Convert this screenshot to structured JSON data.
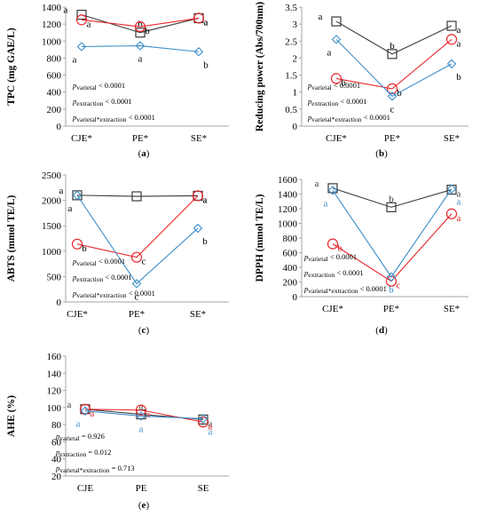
{
  "colors": {
    "black": "#3a3a3a",
    "red": "#e8262b",
    "blue": "#3d8ec9"
  },
  "chart_data": [
    {
      "type": "line",
      "panel": "(a)",
      "ylabel": "TPC (mg GAE/L)",
      "categories": [
        "CJE*",
        "PE*",
        "SE*"
      ],
      "ylim": [
        0,
        1400
      ],
      "yticks": [
        0,
        200,
        400,
        600,
        800,
        1000,
        1200,
        1400
      ],
      "series": [
        {
          "marker": "square",
          "color": "black",
          "values": [
            1310,
            1100,
            1270
          ],
          "letters": [
            "a",
            "b",
            "a"
          ]
        },
        {
          "marker": "circle",
          "color": "red",
          "values": [
            1250,
            1170,
            1270
          ],
          "letters": [
            "a",
            "b",
            "a"
          ]
        },
        {
          "marker": "diamond",
          "color": "blue",
          "values": [
            935,
            945,
            875
          ],
          "letters": [
            "a",
            "a",
            "b"
          ]
        }
      ],
      "stats": [
        "pvarietal < 0.0001",
        "pextraction < 0.0001",
        "pvarietal*extraction < 0.0001"
      ]
    },
    {
      "type": "line",
      "panel": "(b)",
      "ylabel": "Reducing power (Abs/700nm)",
      "categories": [
        "CJE*",
        "PE*",
        "SE*"
      ],
      "ylim": [
        0,
        3.5
      ],
      "yticks": [
        0,
        0.5,
        1,
        1.5,
        2,
        2.5,
        3,
        3.5
      ],
      "series": [
        {
          "marker": "square",
          "color": "black",
          "values": [
            3.08,
            2.12,
            2.95
          ],
          "letters": [
            "a",
            "b",
            "a"
          ]
        },
        {
          "marker": "circle",
          "color": "red",
          "values": [
            1.4,
            1.1,
            2.55
          ],
          "letters": [
            "b",
            "b",
            "a"
          ]
        },
        {
          "marker": "diamond",
          "color": "blue",
          "values": [
            2.55,
            0.88,
            1.83
          ],
          "letters": [
            "a",
            "c",
            "b"
          ]
        }
      ],
      "stats": [
        "pvarietal < 0.0001",
        "pextraction < 0.0001",
        "pvarietal*extraction < 0.0001"
      ]
    },
    {
      "type": "line",
      "panel": "(c)",
      "ylabel": "ABTS (mmol TE/L)",
      "categories": [
        "CJE*",
        "PE*",
        "SE*"
      ],
      "ylim": [
        0,
        2500
      ],
      "yticks": [
        0,
        500,
        1000,
        1500,
        2000,
        2500
      ],
      "series": [
        {
          "marker": "square",
          "color": "black",
          "values": [
            2100,
            2080,
            2090
          ],
          "letters": [
            "a",
            "",
            "a"
          ]
        },
        {
          "marker": "circle",
          "color": "red",
          "values": [
            1140,
            880,
            2090
          ],
          "letters": [
            "b",
            "c",
            "a"
          ]
        },
        {
          "marker": "diamond",
          "color": "blue",
          "values": [
            2100,
            360,
            1450
          ],
          "letters": [
            "a",
            "c",
            "b"
          ]
        }
      ],
      "stats": [
        "pvarietal < 0.0001",
        "pextraction < 0.0001",
        "pvarietal*extraction < 0.0001"
      ]
    },
    {
      "type": "line",
      "panel": "(d)",
      "ylabel": "DPPH (mmol TE/L)",
      "categories": [
        "CJE*",
        "PE*",
        "SE*"
      ],
      "ylim": [
        0,
        1600
      ],
      "yticks": [
        0,
        200,
        400,
        600,
        800,
        1000,
        1200,
        1400,
        1600
      ],
      "series": [
        {
          "marker": "square",
          "color": "black",
          "values": [
            1480,
            1220,
            1460
          ],
          "letters": [
            "a",
            "b",
            "a"
          ]
        },
        {
          "marker": "circle",
          "color": "red",
          "values": [
            720,
            210,
            1130
          ],
          "letters": [
            "b",
            "c",
            "a"
          ]
        },
        {
          "marker": "diamond",
          "color": "blue",
          "values": [
            1450,
            270,
            1470
          ],
          "letters": [
            "a",
            "b",
            "a"
          ]
        }
      ],
      "stats": [
        "pvarietal < 0.0001",
        "pextraction < 0.0001",
        "pvarietal*extraction < 0.0001"
      ]
    },
    {
      "type": "line",
      "panel": "(e)",
      "ylabel": "AHE (%)",
      "categories": [
        "CJE",
        "PE",
        "SE"
      ],
      "ylim": [
        20,
        160
      ],
      "yticks": [
        20,
        40,
        60,
        80,
        100,
        120,
        140,
        160
      ],
      "series": [
        {
          "marker": "square",
          "color": "black",
          "values": [
            98,
            92,
            86
          ],
          "letters": [
            "a",
            "a",
            "a"
          ]
        },
        {
          "marker": "circle",
          "color": "red",
          "values": [
            98,
            97,
            83
          ],
          "letters": [
            "a",
            "a",
            "a"
          ]
        },
        {
          "marker": "diamond",
          "color": "blue",
          "values": [
            96,
            90,
            87
          ],
          "letters": [
            "a",
            "a",
            "a"
          ]
        }
      ],
      "stats": [
        "pvarietal = 0.926",
        "pextraction = 0.012",
        "pvarietal*extraction = 0.713"
      ]
    }
  ]
}
